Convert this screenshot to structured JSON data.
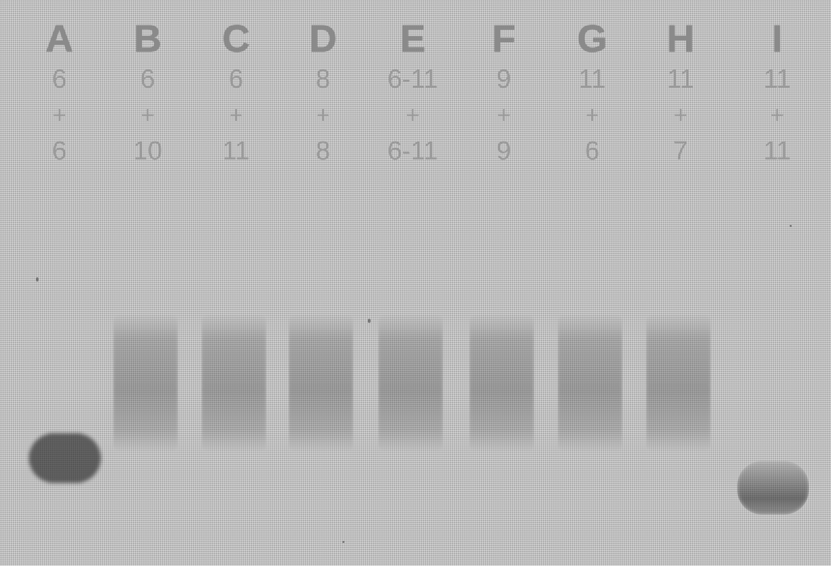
{
  "lanes": [
    {
      "letter": "A",
      "top": "6",
      "plus": "+",
      "bottom": "6",
      "band": "low"
    },
    {
      "letter": "B",
      "top": "6",
      "plus": "+",
      "bottom": "10",
      "band": "smear"
    },
    {
      "letter": "C",
      "top": "6",
      "plus": "+",
      "bottom": "11",
      "band": "smear"
    },
    {
      "letter": "D",
      "top": "8",
      "plus": "+",
      "bottom": "8",
      "band": "smear"
    },
    {
      "letter": "E",
      "top": "6-11",
      "plus": "+",
      "bottom": "6-11",
      "band": "smear"
    },
    {
      "letter": "F",
      "top": "9",
      "plus": "+",
      "bottom": "9",
      "band": "smear"
    },
    {
      "letter": "G",
      "top": "11",
      "plus": "+",
      "bottom": "6",
      "band": "smear"
    },
    {
      "letter": "H",
      "top": "11",
      "plus": "+",
      "bottom": "7",
      "band": "smear"
    },
    {
      "letter": "I",
      "top": "11",
      "plus": "+",
      "bottom": "11",
      "band": "low"
    }
  ]
}
